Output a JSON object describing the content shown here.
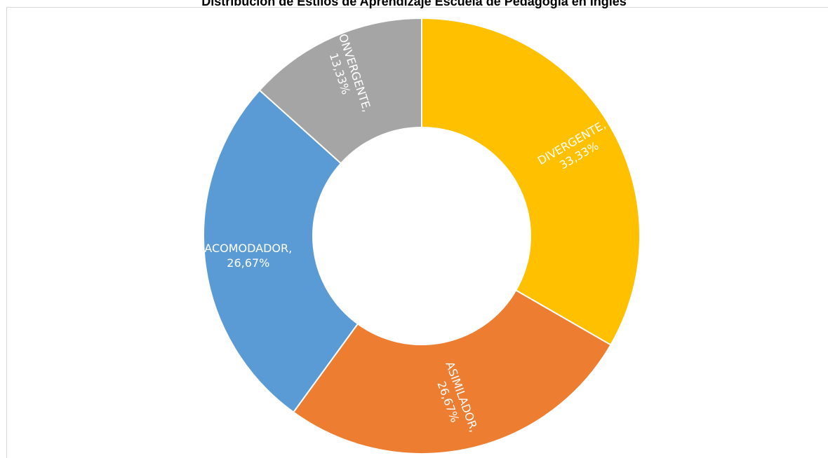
{
  "chart_data": {
    "type": "pie",
    "variant": "doughnut",
    "title": "Distribución de Estilos de Aprendizaje Escuela de Pedagogía en Inglés",
    "categories": [
      "DIVERGENTE",
      "ASIMILADOR",
      "ACOMODADOR",
      "CONVERGENTE"
    ],
    "values": [
      33.33,
      26.67,
      26.67,
      13.33
    ],
    "labels": [
      {
        "name": "DIVERGENTE,",
        "value": "33,33%"
      },
      {
        "name": "ASIMILADOR,",
        "value": "26,67%"
      },
      {
        "name": "ACOMODADOR,",
        "value": "26,67%"
      },
      {
        "name": "CONVERGENTE,",
        "value": "13,33%"
      }
    ],
    "colors": [
      "#FFC000",
      "#ED7D31",
      "#5B9BD5",
      "#A5A5A5"
    ],
    "legend": "none"
  }
}
